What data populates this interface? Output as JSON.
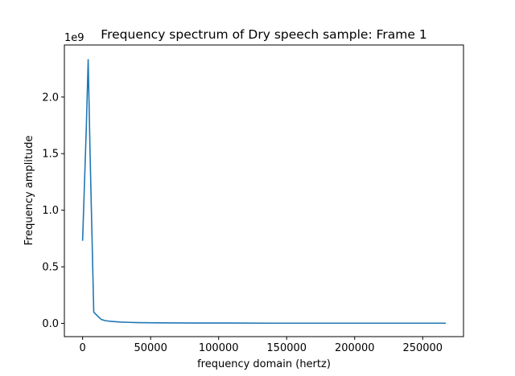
{
  "chart_data": {
    "type": "line",
    "title": "Frequency spectrum of Dry speech sample: Frame 1",
    "xlabel": "frequency domain (hertz)",
    "ylabel": "Frequency amplitude",
    "y_offset_label": "1e9",
    "xlim": [
      -13400,
      280000
    ],
    "ylim": [
      -0.117,
      2.46
    ],
    "x_ticks": [
      0,
      50000,
      100000,
      150000,
      200000,
      250000
    ],
    "x_tick_labels": [
      "0",
      "50000",
      "100000",
      "150000",
      "200000",
      "250000"
    ],
    "y_ticks": [
      0.0,
      0.5,
      1.0,
      1.5,
      2.0
    ],
    "y_tick_labels": [
      "0.0",
      "0.5",
      "1.0",
      "1.5",
      "2.0"
    ],
    "grid": false,
    "series": [
      {
        "color": "#1f77b4",
        "x": [
          0,
          2700,
          4100,
          5500,
          8200,
          11000,
          13700,
          16400,
          20500,
          27400,
          34200,
          41000,
          54700,
          68400,
          82100,
          109400,
          136800,
          164200,
          191500,
          218900,
          246200,
          267000
        ],
        "y": [
          0.73,
          1.72,
          2.33,
          1.5,
          0.1,
          0.065,
          0.035,
          0.025,
          0.018,
          0.012,
          0.009,
          0.007,
          0.005,
          0.004,
          0.003,
          0.003,
          0.002,
          0.002,
          0.002,
          0.002,
          0.002,
          0.002
        ]
      }
    ]
  }
}
